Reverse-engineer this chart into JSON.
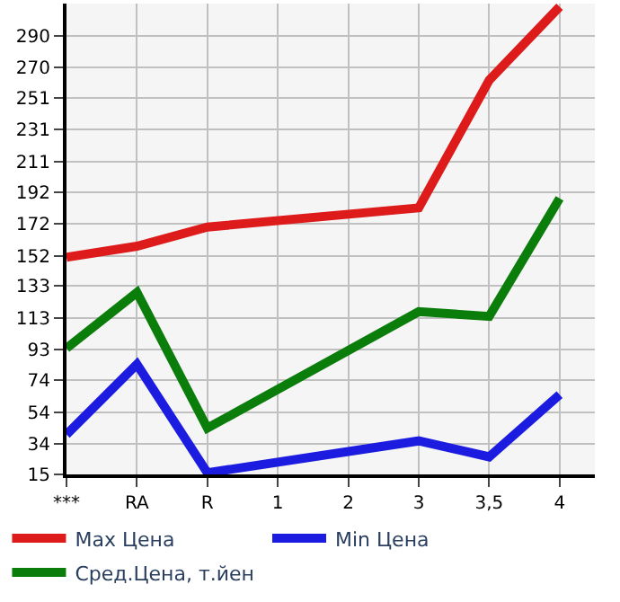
{
  "chart_data": {
    "type": "line",
    "categories": [
      "***",
      "RA",
      "R",
      "1",
      "2",
      "3",
      "3,5",
      "4"
    ],
    "series": [
      {
        "name": "Max Цена",
        "color": "#dd1b1b",
        "values": [
          151,
          158,
          170,
          null,
          null,
          182,
          262,
          308
        ]
      },
      {
        "name": "Min Цена",
        "color": "#1c1ce0",
        "values": [
          40,
          84,
          16,
          null,
          null,
          36,
          26,
          65
        ]
      },
      {
        "name": "Сред.Цена, т.йен",
        "color": "#0a7d0a",
        "values": [
          94,
          129,
          44,
          null,
          null,
          117,
          114,
          188
        ]
      }
    ],
    "ylim": [
      15,
      310
    ],
    "yticks": [
      15,
      34,
      54,
      74,
      93,
      113,
      133,
      152,
      172,
      192,
      211,
      231,
      251,
      270,
      290
    ],
    "grid": true,
    "legend": "bottom",
    "marker": "none",
    "line_style": "solid"
  }
}
